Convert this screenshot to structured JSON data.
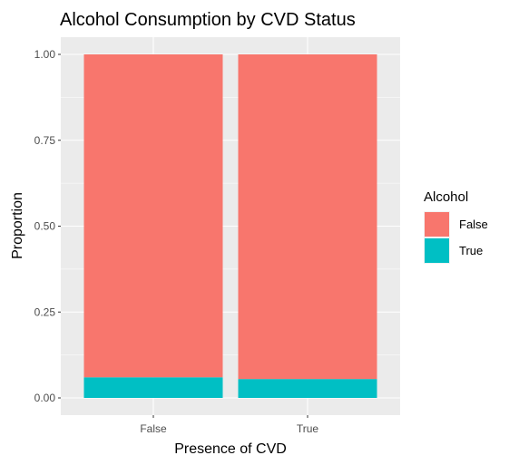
{
  "chart_data": {
    "type": "bar",
    "stacked": true,
    "title": "Alcohol Consumption by CVD Status",
    "xlabel": "Presence of CVD",
    "ylabel": "Proportion",
    "categories": [
      "False",
      "True"
    ],
    "ylim": [
      0,
      1
    ],
    "yticks": [
      "0.00",
      "0.25",
      "0.50",
      "0.75",
      "1.00"
    ],
    "grid": true,
    "legend": {
      "title": "Alcohol",
      "position": "right",
      "entries": [
        "False",
        "True"
      ]
    },
    "series": [
      {
        "name": "True",
        "values": [
          0.06,
          0.055
        ],
        "color": "#00BFC4"
      },
      {
        "name": "False",
        "values": [
          0.94,
          0.945
        ],
        "color": "#F8766D"
      }
    ],
    "panel_background": "#EBEBEB",
    "grid_color": "#FFFFFF"
  }
}
